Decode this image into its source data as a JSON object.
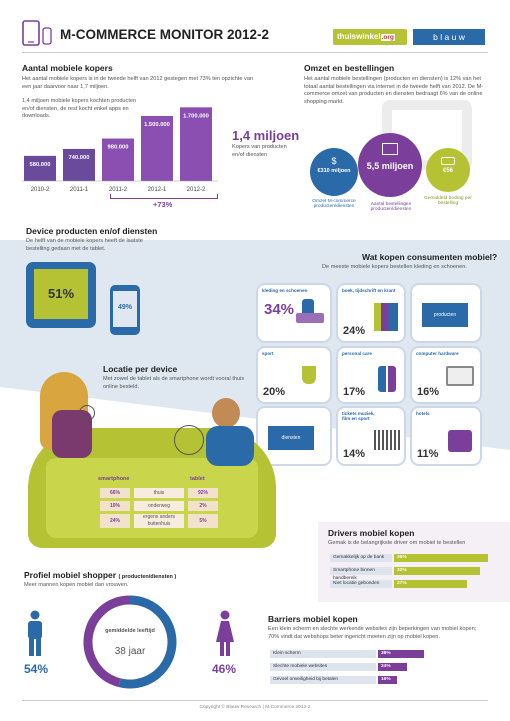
{
  "header": {
    "title": "M-COMMERCE MONITOR 2012-2",
    "logo1": "thuiswinkel",
    "logo1_suffix": ".org",
    "logo2": "b l a u w"
  },
  "kopers": {
    "title": "Aantal mobiele kopers",
    "text1": "Het aantal mobiele kopers is in de tweede helft van 2012 gestegen met 73% ten opzichte van een jaar daarvoor naar 1,7 miljoen.",
    "text2": "1,4 miljoen mobiele kopers kochten producten en/of diensten, de rest kocht enkel apps en downloads.",
    "big": "1,4 miljoen",
    "big_sub": "Kopers van producten en/of diensten",
    "growth": "+73%"
  },
  "omzet": {
    "title": "Omzet en bestellingen",
    "text": "Het aantal mobiele bestellingen (producten en diensten) is 12% van het totaal aantal bestellingen via internet in de tweede helft van 2012. De M-commerce omzet van producten en diensten bedraagt 6% van de online shopping markt.",
    "c1_value": "€310 miljoen",
    "c1_label": "Omzet M-commerce producten/diensten",
    "c2_value": "5,5 miljoen",
    "c2_label": "Aantal bestellingen producten/diensten",
    "c3_value": "€56",
    "c3_label": "Gemiddeld bedrag per bestelling"
  },
  "device": {
    "title": "Device producten en/of diensten",
    "text": "De helft van de mobiele kopers heeft de laatste bestelling gedaan met de tablet.",
    "tablet_pct": "51%",
    "phone_pct": "49%"
  },
  "watkopen": {
    "title": "Wat kopen consumenten mobiel?",
    "text": "De meeste mobiele kopers bestellen kleding en schoenen.",
    "tiles": [
      {
        "label": "kleding en schoenen",
        "pct": "34%"
      },
      {
        "label": "boek, tijdschrift en krant",
        "pct": "24%"
      },
      {
        "label": "",
        "pct": ""
      },
      {
        "label": "sport",
        "pct": "20%"
      },
      {
        "label": "personal care",
        "pct": "17%"
      },
      {
        "label": "computer hardware",
        "pct": "16%"
      },
      {
        "label": "",
        "pct": ""
      },
      {
        "label": "tickets muziek, film en sport",
        "pct": "14%"
      },
      {
        "label": "hotels",
        "pct": "11%"
      }
    ],
    "tile_producten": "producten",
    "tile_diensten": "diensten"
  },
  "locatie": {
    "title": "Locatie per device",
    "text": "Met zowel de tablet als de smartphone wordt vooral thuis online besteld.",
    "col_smartphone": "smartphone",
    "col_tablet": "tablet",
    "rows": [
      {
        "smart": "66%",
        "label": "thuis",
        "tablet": "92%"
      },
      {
        "smart": "10%",
        "label": "onderweg",
        "tablet": "2%"
      },
      {
        "smart": "24%",
        "label": "ergens anders buitenhuis",
        "tablet": "5%"
      }
    ]
  },
  "drivers": {
    "title": "Drivers mobiel kopen",
    "text": "Gemak is de belangrijkste driver om mobiel te bestellen",
    "items": [
      {
        "label": "Gemakkelijk op de bank",
        "pct": "35%"
      },
      {
        "label": "Smartphone binnen handbereik",
        "pct": "32%"
      },
      {
        "label": "Niet locatie gebonden",
        "pct": "27%"
      }
    ]
  },
  "profiel": {
    "title": "Profiel mobiel shopper",
    "title_suffix": "( producten/diensten )",
    "text": "Meer mannen kopen mobiel dan vrouwen.",
    "age_label": "gemiddelde leeftijd",
    "age_value": "38 jaar",
    "men": "54%",
    "women": "46%"
  },
  "barriers": {
    "title": "Barriers mobiel kopen",
    "text": "Een klein scherm en slechte werkende websites zijn beperkingen van mobiel kopen; 70% vindt dat webshops beter ingericht moeten zijn op mobiel kopen.",
    "items": [
      {
        "label": "Klein scherm",
        "pct": "38%"
      },
      {
        "label": "Slechte mobiele websites",
        "pct": "24%"
      },
      {
        "label": "Gevoel onveiligheid bij betalen",
        "pct": "16%"
      }
    ]
  },
  "footer": "Copyright © Blauw Research | M-Commerce 2012-2",
  "colors": {
    "purple": "#7b3f9b",
    "green": "#b4c234",
    "blue": "#2a6aa8"
  },
  "chart_data": [
    {
      "type": "bar",
      "title": "Aantal mobiele kopers",
      "categories": [
        "2010-2",
        "2011-1",
        "2011-2",
        "2012-1",
        "2012-2"
      ],
      "values": [
        580000,
        740000,
        980000,
        1500000,
        1700000
      ],
      "value_labels": [
        "580.000",
        "740.000",
        "980.000",
        "1.500.000",
        "1.700.000"
      ]
    },
    {
      "type": "pie",
      "title": "Profiel mobiel shopper",
      "categories": [
        "mannen",
        "vrouwen"
      ],
      "values": [
        54,
        46
      ]
    },
    {
      "type": "bar",
      "title": "Drivers mobiel kopen",
      "categories": [
        "Gemakkelijk op de bank",
        "Smartphone binnen handbereik",
        "Niet locatie gebonden"
      ],
      "values": [
        35,
        32,
        27
      ]
    },
    {
      "type": "bar",
      "title": "Barriers mobiel kopen",
      "categories": [
        "Klein scherm",
        "Slechte mobiele websites",
        "Gevoel onveiligheid bij betalen"
      ],
      "values": [
        38,
        24,
        16
      ]
    }
  ]
}
